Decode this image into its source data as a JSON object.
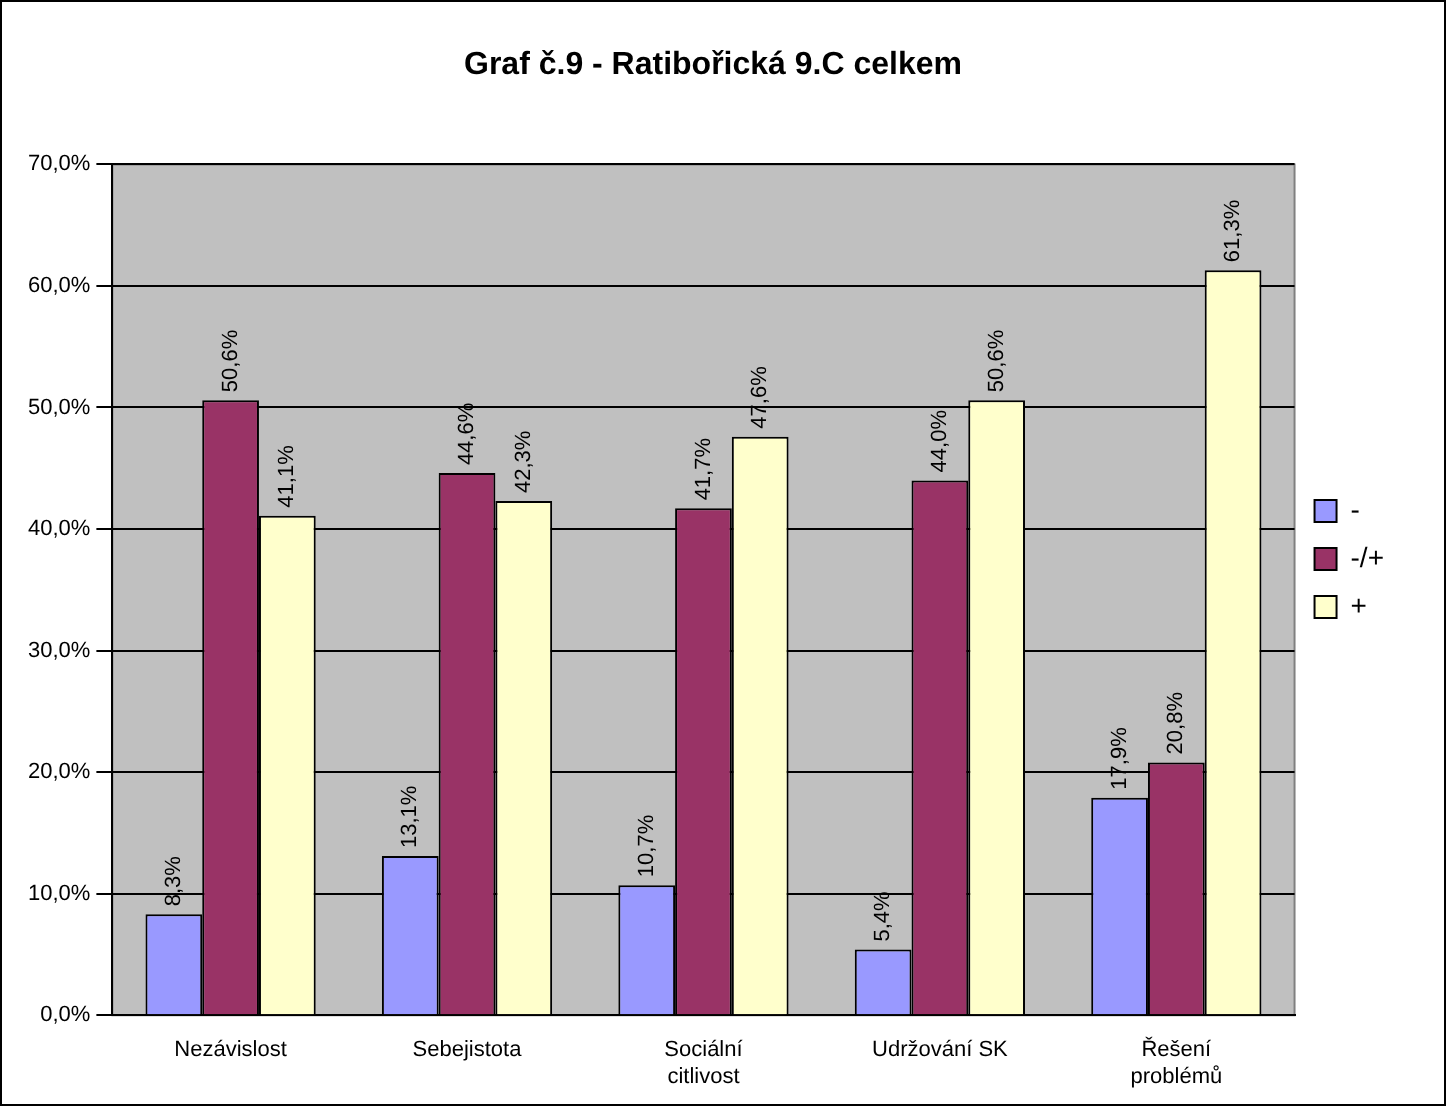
{
  "chart_data": {
    "type": "bar",
    "title": "Graf č.9 - Ratibořická 9.C celkem",
    "categories": [
      "Nezávislost",
      "Sebejistota",
      "Sociální citlivost",
      "Udržování SK",
      "Řešení problémů"
    ],
    "series": [
      {
        "name": "-",
        "color": "#9999ff",
        "values": [
          8.3,
          13.1,
          10.7,
          5.4,
          17.9
        ],
        "value_labels": [
          "8,3%",
          "13,1%",
          "10,7%",
          "5,4%",
          "17,9%"
        ]
      },
      {
        "name": "-/+",
        "color": "#993366",
        "values": [
          50.6,
          44.6,
          41.7,
          44.0,
          20.8
        ],
        "value_labels": [
          "50,6%",
          "44,6%",
          "41,7%",
          "44,0%",
          "20,8%"
        ]
      },
      {
        "name": "+",
        "color": "#ffffcc",
        "values": [
          41.1,
          42.3,
          47.6,
          50.6,
          61.3
        ],
        "value_labels": [
          "41,1%",
          "42,3%",
          "47,6%",
          "50,6%",
          "61,3%"
        ]
      }
    ],
    "ylim": [
      0,
      70
    ],
    "yticks": [
      {
        "value": 0,
        "label": "0,0%"
      },
      {
        "value": 10,
        "label": "10,0%"
      },
      {
        "value": 20,
        "label": "20,0%"
      },
      {
        "value": 30,
        "label": "30,0%"
      },
      {
        "value": 40,
        "label": "40,0%"
      },
      {
        "value": 50,
        "label": "50,0%"
      },
      {
        "value": 60,
        "label": "60,0%"
      },
      {
        "value": 70,
        "label": "70,0%"
      }
    ],
    "grid": "y",
    "legend": "right"
  }
}
